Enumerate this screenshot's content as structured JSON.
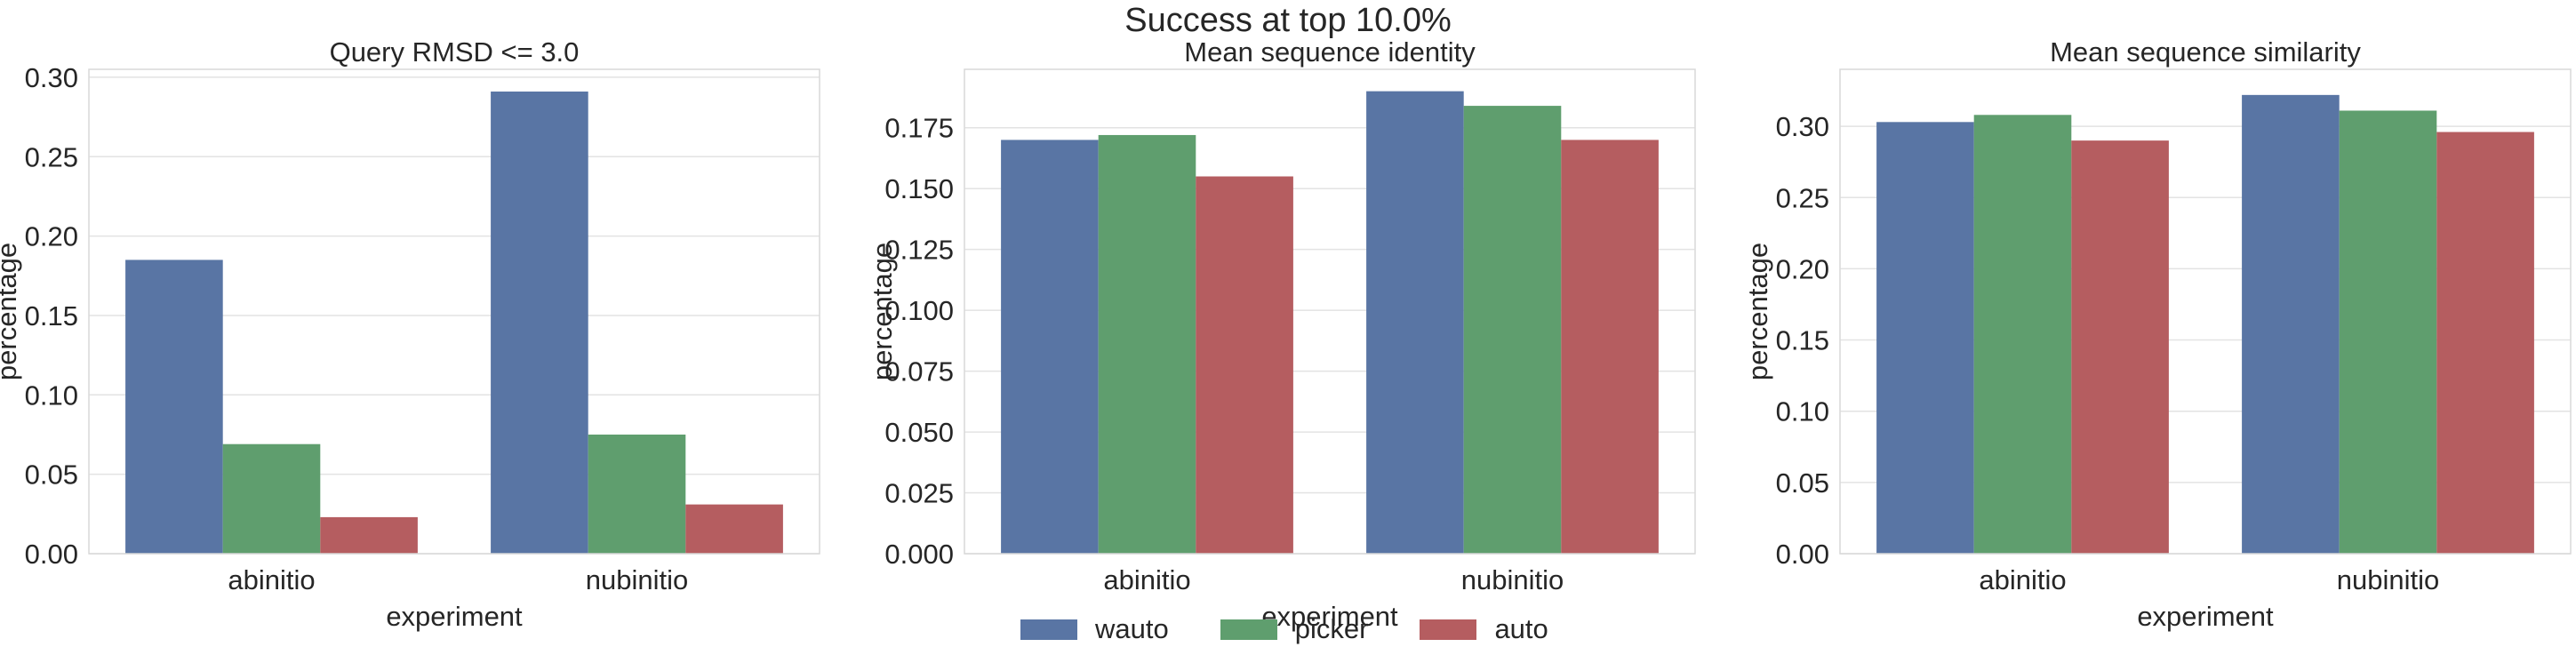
{
  "suptitle": "Success at top 10.0%",
  "legend": [
    {
      "label": "wauto",
      "color": "#5975a4"
    },
    {
      "label": "picker",
      "color": "#5f9e6e"
    },
    {
      "label": "auto",
      "color": "#b55d60"
    }
  ],
  "chart_data": [
    {
      "type": "bar",
      "title": "Query RMSD <= 3.0",
      "xlabel": "experiment",
      "ylabel": "percentage",
      "categories": [
        "abinitio",
        "nubinitio"
      ],
      "ylim": [
        0,
        0.305
      ],
      "yticks": [
        "0.00",
        "0.05",
        "0.10",
        "0.15",
        "0.20",
        "0.25",
        "0.30"
      ],
      "series": [
        {
          "name": "wauto",
          "values": [
            0.185,
            0.291
          ]
        },
        {
          "name": "picker",
          "values": [
            0.069,
            0.075
          ]
        },
        {
          "name": "auto",
          "values": [
            0.023,
            0.031
          ]
        }
      ]
    },
    {
      "type": "bar",
      "title": "Mean sequence identity",
      "xlabel": "experiment",
      "ylabel": "percentage",
      "categories": [
        "abinitio",
        "nubinitio"
      ],
      "ylim": [
        0,
        0.199
      ],
      "yticks": [
        "0.000",
        "0.025",
        "0.050",
        "0.075",
        "0.100",
        "0.125",
        "0.150",
        "0.175"
      ],
      "series": [
        {
          "name": "wauto",
          "values": [
            0.17,
            0.19
          ]
        },
        {
          "name": "picker",
          "values": [
            0.172,
            0.184
          ]
        },
        {
          "name": "auto",
          "values": [
            0.155,
            0.17
          ]
        }
      ]
    },
    {
      "type": "bar",
      "title": "Mean sequence similarity",
      "xlabel": "experiment",
      "ylabel": "percentage",
      "categories": [
        "abinitio",
        "nubinitio"
      ],
      "ylim": [
        0,
        0.34
      ],
      "yticks": [
        "0.00",
        "0.05",
        "0.10",
        "0.15",
        "0.20",
        "0.25",
        "0.30"
      ],
      "series": [
        {
          "name": "wauto",
          "values": [
            0.303,
            0.322
          ]
        },
        {
          "name": "picker",
          "values": [
            0.308,
            0.311
          ]
        },
        {
          "name": "auto",
          "values": [
            0.29,
            0.296
          ]
        }
      ]
    }
  ]
}
